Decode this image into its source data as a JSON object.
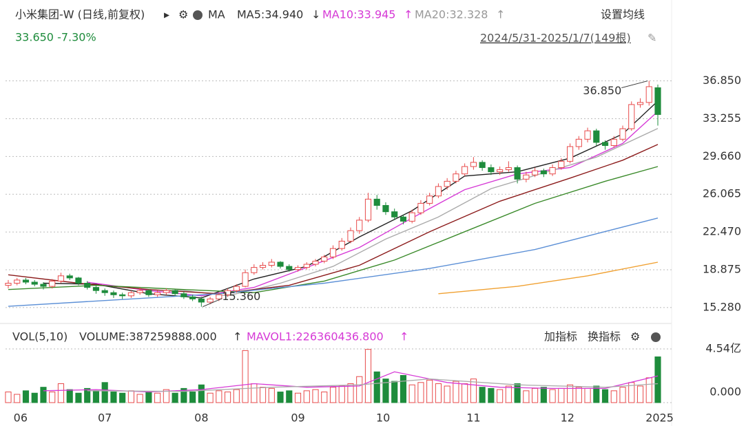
{
  "header": {
    "title": "小米集团-W (日线,前复权)",
    "ma_label": "MA",
    "ma5": "MA5:34.940",
    "ma5_arrow": "↓",
    "ma10": "MA10:33.945",
    "ma10_arrow": "↑",
    "ma20": "MA20:32.328",
    "ma20_arrow": "↑",
    "settings": "设置均线",
    "change": "33.650 -7.30%",
    "range": "2024/5/31-2025/1/7(149根)"
  },
  "chart_data": [
    {
      "type": "candlestick",
      "up_color": "#e84a4a",
      "down_color": "#1e8c3c",
      "candles": [
        [
          17.4,
          17.9,
          17.1,
          17.6
        ],
        [
          17.6,
          18.1,
          17.4,
          17.9
        ],
        [
          17.9,
          18.1,
          17.5,
          17.7
        ],
        [
          17.7,
          17.9,
          17.3,
          17.5
        ],
        [
          17.5,
          17.7,
          17.0,
          17.3
        ],
        [
          17.3,
          18.0,
          17.1,
          17.8
        ],
        [
          17.8,
          18.6,
          17.6,
          18.3
        ],
        [
          18.3,
          18.5,
          17.9,
          18.1
        ],
        [
          18.1,
          18.2,
          17.4,
          17.6
        ],
        [
          17.6,
          17.8,
          17.0,
          17.2
        ],
        [
          17.2,
          17.4,
          16.6,
          16.9
        ],
        [
          16.9,
          17.1,
          16.4,
          16.7
        ],
        [
          16.7,
          16.9,
          16.2,
          16.5
        ],
        [
          16.5,
          16.7,
          16.1,
          16.4
        ],
        [
          16.4,
          16.9,
          16.2,
          16.7
        ],
        [
          16.7,
          17.2,
          16.5,
          16.9
        ],
        [
          16.9,
          17.0,
          16.3,
          16.5
        ],
        [
          16.5,
          16.9,
          16.3,
          16.7
        ],
        [
          16.7,
          17.1,
          16.5,
          16.9
        ],
        [
          16.9,
          17.0,
          16.4,
          16.6
        ],
        [
          16.6,
          16.8,
          16.1,
          16.3
        ],
        [
          16.3,
          16.5,
          15.9,
          16.1
        ],
        [
          16.1,
          16.3,
          15.36,
          15.8
        ],
        [
          15.8,
          16.3,
          15.6,
          16.1
        ],
        [
          16.1,
          16.7,
          15.9,
          16.5
        ],
        [
          16.5,
          17.1,
          16.3,
          16.9
        ],
        [
          16.9,
          17.5,
          16.7,
          17.3
        ],
        [
          17.3,
          18.9,
          17.2,
          18.6
        ],
        [
          18.6,
          19.4,
          18.4,
          19.1
        ],
        [
          19.1,
          19.6,
          18.9,
          19.3
        ],
        [
          19.3,
          19.9,
          19.1,
          19.6
        ],
        [
          19.6,
          19.7,
          19.0,
          19.2
        ],
        [
          19.2,
          19.4,
          18.7,
          18.9
        ],
        [
          18.9,
          19.3,
          18.7,
          19.1
        ],
        [
          19.1,
          19.6,
          18.9,
          19.4
        ],
        [
          19.4,
          19.9,
          19.2,
          19.7
        ],
        [
          19.7,
          20.3,
          19.5,
          20.1
        ],
        [
          20.1,
          21.2,
          19.9,
          20.9
        ],
        [
          20.9,
          21.9,
          20.7,
          21.6
        ],
        [
          21.6,
          22.9,
          21.4,
          22.6
        ],
        [
          22.6,
          23.9,
          22.3,
          23.6
        ],
        [
          23.6,
          26.2,
          23.4,
          25.6
        ],
        [
          25.6,
          26.0,
          24.6,
          25.0
        ],
        [
          25.0,
          25.3,
          24.1,
          24.4
        ],
        [
          24.4,
          24.7,
          23.6,
          23.9
        ],
        [
          23.9,
          24.1,
          23.2,
          23.5
        ],
        [
          23.5,
          24.6,
          23.3,
          24.3
        ],
        [
          24.3,
          25.5,
          24.1,
          25.2
        ],
        [
          25.2,
          26.2,
          25.0,
          25.9
        ],
        [
          25.9,
          27.1,
          25.7,
          26.8
        ],
        [
          26.8,
          27.6,
          26.5,
          27.3
        ],
        [
          27.3,
          28.3,
          27.1,
          28.0
        ],
        [
          28.0,
          29.0,
          27.8,
          28.7
        ],
        [
          28.7,
          29.6,
          28.4,
          29.1
        ],
        [
          29.1,
          29.3,
          28.3,
          28.6
        ],
        [
          28.6,
          28.9,
          27.9,
          28.2
        ],
        [
          28.2,
          28.7,
          27.9,
          28.4
        ],
        [
          28.4,
          29.2,
          28.2,
          28.6
        ],
        [
          28.6,
          28.8,
          27.1,
          27.5
        ],
        [
          27.5,
          28.2,
          27.2,
          27.9
        ],
        [
          27.9,
          28.6,
          27.7,
          28.3
        ],
        [
          28.3,
          28.5,
          27.7,
          28.0
        ],
        [
          28.0,
          28.9,
          27.8,
          28.6
        ],
        [
          28.6,
          29.5,
          28.4,
          29.2
        ],
        [
          29.2,
          30.9,
          29.0,
          30.6
        ],
        [
          30.6,
          31.6,
          30.3,
          31.3
        ],
        [
          31.3,
          32.4,
          31.0,
          32.1
        ],
        [
          32.1,
          32.3,
          30.7,
          31.0
        ],
        [
          31.0,
          31.2,
          30.3,
          30.7
        ],
        [
          30.7,
          31.6,
          30.5,
          31.3
        ],
        [
          31.3,
          32.6,
          31.1,
          32.3
        ],
        [
          32.3,
          34.9,
          32.1,
          34.6
        ],
        [
          34.6,
          35.2,
          34.3,
          34.8
        ],
        [
          34.8,
          36.85,
          34.5,
          36.3
        ],
        [
          36.2,
          36.5,
          32.6,
          33.65
        ]
      ],
      "ma_lines": [
        {
          "color": "#222222",
          "x": [
            4,
            10,
            16,
            22,
            28,
            34,
            40,
            46,
            52,
            58,
            64,
            70,
            74
          ],
          "values": [
            17.6,
            17.5,
            16.6,
            16.2,
            18.0,
            19.2,
            22.0,
            24.5,
            27.8,
            28.2,
            29.5,
            31.8,
            34.94
          ]
        },
        {
          "color": "#d63ad6",
          "x": [
            9,
            16,
            22,
            28,
            34,
            40,
            46,
            52,
            58,
            64,
            70,
            74
          ],
          "values": [
            17.7,
            16.9,
            16.4,
            17.2,
            19.1,
            21.0,
            23.8,
            26.5,
            28.0,
            28.6,
            30.9,
            33.945
          ]
        },
        {
          "color": "#aaaaaa",
          "x": [
            19,
            25,
            31,
            37,
            43,
            49,
            55,
            61,
            67,
            74
          ],
          "values": [
            17.0,
            16.4,
            17.6,
            19.2,
            21.8,
            23.9,
            26.6,
            28.1,
            29.6,
            32.328
          ]
        },
        {
          "color": "#8b1a1a",
          "x": [
            0,
            8,
            16,
            24,
            32,
            40,
            48,
            56,
            64,
            70,
            74
          ],
          "values": [
            18.4,
            17.6,
            17.0,
            16.6,
            17.4,
            19.3,
            22.5,
            25.4,
            27.6,
            29.3,
            30.8
          ]
        },
        {
          "color": "#3a8a2a",
          "x": [
            0,
            10,
            20,
            28,
            36,
            44,
            52,
            60,
            68,
            74
          ],
          "values": [
            17.0,
            17.4,
            17.0,
            16.7,
            17.8,
            19.8,
            22.5,
            25.2,
            27.3,
            28.7
          ]
        },
        {
          "color": "#5b8fd6",
          "x": [
            0,
            12,
            24,
            36,
            48,
            60,
            74
          ],
          "values": [
            15.4,
            16.0,
            16.6,
            17.6,
            19.0,
            20.8,
            23.8
          ]
        },
        {
          "color": "#f0a030",
          "x": [
            49,
            58,
            66,
            74
          ],
          "values": [
            16.6,
            17.3,
            18.3,
            19.6
          ]
        }
      ],
      "max_label": "36.850",
      "max_index": 73,
      "min_label": "15.360",
      "min_index": 22,
      "ylim": [
        13.9,
        38.0
      ],
      "yticks": [
        {
          "value": 36.85,
          "label": "36.850"
        },
        33.255,
        {
          "value": 29.66,
          "label": "29.660"
        },
        26.065,
        {
          "value": 22.47,
          "label": "22.470"
        },
        18.875,
        {
          "value": 15.28,
          "label": "15.280"
        }
      ],
      "xlim": [
        0,
        74
      ],
      "xticks": [
        {
          "value": 1.4,
          "label": "06"
        },
        {
          "value": 11,
          "label": "07"
        },
        {
          "value": 22,
          "label": "08"
        },
        {
          "value": 33,
          "label": "09"
        },
        {
          "value": 42.7,
          "label": "10"
        },
        {
          "value": 53,
          "label": "11"
        },
        {
          "value": 63.7,
          "label": "12"
        },
        {
          "value": 74.2,
          "label": "2025"
        }
      ],
      "grid": true
    },
    {
      "type": "bar",
      "title": "VOL(5,10)",
      "volume_label": "VOLUME:387259888.000",
      "arrow1": "↑",
      "mavol1": "MAVOL1:226360436.800",
      "arrow2": "↑",
      "buttons": [
        "加指标",
        "换指标"
      ],
      "values": [
        0.9,
        0.7,
        1.0,
        0.8,
        1.3,
        0.9,
        1.6,
        1.1,
        0.8,
        1.2,
        1.0,
        1.7,
        0.9,
        0.8,
        1.0,
        0.7,
        0.9,
        0.8,
        1.1,
        0.8,
        1.2,
        0.9,
        1.5,
        0.8,
        1.0,
        0.9,
        1.1,
        4.4,
        1.6,
        1.3,
        1.2,
        0.9,
        1.0,
        0.8,
        1.0,
        1.1,
        0.9,
        1.3,
        1.4,
        1.6,
        2.2,
        4.5,
        2.6,
        2.0,
        1.8,
        2.3,
        1.5,
        1.7,
        1.9,
        1.6,
        1.4,
        1.8,
        1.6,
        2.0,
        1.3,
        1.2,
        1.1,
        1.4,
        1.6,
        1.0,
        1.2,
        1.3,
        1.1,
        1.2,
        1.5,
        1.3,
        1.2,
        1.4,
        1.1,
        1.0,
        1.3,
        1.7,
        1.4,
        2.1,
        3.87
      ],
      "lines": [
        {
          "color": "#d63ad6",
          "x": [
            4,
            10,
            16,
            22,
            28,
            34,
            40,
            44,
            50,
            56,
            62,
            68,
            74
          ],
          "values": [
            1.0,
            1.1,
            0.9,
            1.1,
            1.6,
            1.3,
            1.4,
            2.6,
            1.7,
            1.3,
            1.2,
            1.2,
            2.26
          ]
        },
        {
          "color": "#aaaaaa",
          "x": [
            9,
            20,
            30,
            40,
            48,
            58,
            68,
            74
          ],
          "values": [
            1.0,
            0.95,
            1.3,
            1.5,
            2.0,
            1.5,
            1.3,
            1.6
          ]
        }
      ],
      "ylim": [
        0,
        4.54
      ],
      "yticks": [
        {
          "value": 4.54,
          "label": "4.54亿"
        },
        {
          "value": 0,
          "label": "0.000"
        }
      ]
    }
  ]
}
